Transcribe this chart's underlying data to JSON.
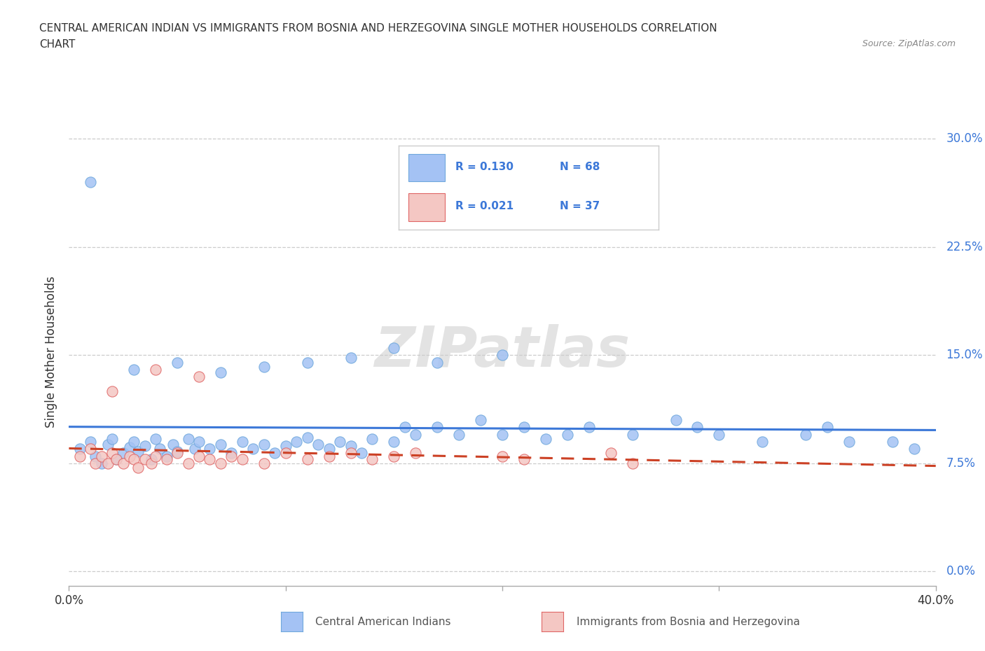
{
  "title_line1": "CENTRAL AMERICAN INDIAN VS IMMIGRANTS FROM BOSNIA AND HERZEGOVINA SINGLE MOTHER HOUSEHOLDS CORRELATION",
  "title_line2": "CHART",
  "source": "Source: ZipAtlas.com",
  "ylabel": "Single Mother Households",
  "xmin": 0.0,
  "xmax": 0.4,
  "ymin": -0.01,
  "ymax": 0.315,
  "ytick_vals": [
    0.0,
    0.075,
    0.15,
    0.225,
    0.3
  ],
  "ytick_labels_right": [
    "0.0%",
    "7.5%",
    "15.0%",
    "22.5%",
    "30.0%"
  ],
  "xtick_vals": [
    0.0,
    0.1,
    0.2,
    0.3,
    0.4
  ],
  "xtick_labels": [
    "0.0%",
    "",
    "",
    "",
    "40.0%"
  ],
  "blue_color": "#a4c2f4",
  "pink_color": "#f4c7c3",
  "blue_line_color": "#3c78d8",
  "pink_line_color": "#cc4125",
  "blue_dot_edge": "#6fa8dc",
  "pink_dot_edge": "#e06666",
  "watermark": "ZIPatlas",
  "blue_x": [
    0.005,
    0.01,
    0.012,
    0.015,
    0.018,
    0.02,
    0.022,
    0.025,
    0.028,
    0.03,
    0.032,
    0.035,
    0.038,
    0.04,
    0.042,
    0.045,
    0.048,
    0.05,
    0.055,
    0.058,
    0.06,
    0.065,
    0.07,
    0.075,
    0.08,
    0.085,
    0.09,
    0.095,
    0.1,
    0.105,
    0.11,
    0.115,
    0.12,
    0.125,
    0.13,
    0.135,
    0.14,
    0.15,
    0.155,
    0.16,
    0.17,
    0.18,
    0.19,
    0.2,
    0.21,
    0.22,
    0.23,
    0.24,
    0.26,
    0.28,
    0.29,
    0.3,
    0.32,
    0.34,
    0.35,
    0.36,
    0.38,
    0.39,
    0.03,
    0.05,
    0.07,
    0.09,
    0.11,
    0.13,
    0.15,
    0.17,
    0.2,
    0.01
  ],
  "blue_y": [
    0.085,
    0.09,
    0.08,
    0.075,
    0.088,
    0.092,
    0.078,
    0.082,
    0.086,
    0.09,
    0.083,
    0.087,
    0.078,
    0.092,
    0.085,
    0.08,
    0.088,
    0.083,
    0.092,
    0.085,
    0.09,
    0.085,
    0.088,
    0.082,
    0.09,
    0.085,
    0.088,
    0.082,
    0.087,
    0.09,
    0.093,
    0.088,
    0.085,
    0.09,
    0.087,
    0.082,
    0.092,
    0.09,
    0.1,
    0.095,
    0.1,
    0.095,
    0.105,
    0.095,
    0.1,
    0.092,
    0.095,
    0.1,
    0.095,
    0.105,
    0.1,
    0.095,
    0.09,
    0.095,
    0.1,
    0.09,
    0.09,
    0.085,
    0.14,
    0.145,
    0.138,
    0.142,
    0.145,
    0.148,
    0.155,
    0.145,
    0.15,
    0.27
  ],
  "pink_x": [
    0.005,
    0.01,
    0.012,
    0.015,
    0.018,
    0.02,
    0.022,
    0.025,
    0.028,
    0.03,
    0.032,
    0.035,
    0.038,
    0.04,
    0.045,
    0.05,
    0.055,
    0.06,
    0.065,
    0.07,
    0.075,
    0.08,
    0.09,
    0.1,
    0.11,
    0.12,
    0.13,
    0.14,
    0.15,
    0.16,
    0.2,
    0.21,
    0.25,
    0.26,
    0.02,
    0.04,
    0.06
  ],
  "pink_y": [
    0.08,
    0.085,
    0.075,
    0.08,
    0.075,
    0.082,
    0.078,
    0.075,
    0.08,
    0.078,
    0.072,
    0.078,
    0.075,
    0.08,
    0.078,
    0.082,
    0.075,
    0.08,
    0.078,
    0.075,
    0.08,
    0.078,
    0.075,
    0.082,
    0.078,
    0.08,
    0.082,
    0.078,
    0.08,
    0.082,
    0.08,
    0.078,
    0.082,
    0.075,
    0.125,
    0.14,
    0.135
  ],
  "blue_trendline": [
    0.088,
    0.108
  ],
  "pink_trendline": [
    0.082,
    0.082
  ],
  "legend_text": [
    [
      "R = 0.130",
      "N = 68"
    ],
    [
      "R = 0.021",
      "N = 37"
    ]
  ]
}
